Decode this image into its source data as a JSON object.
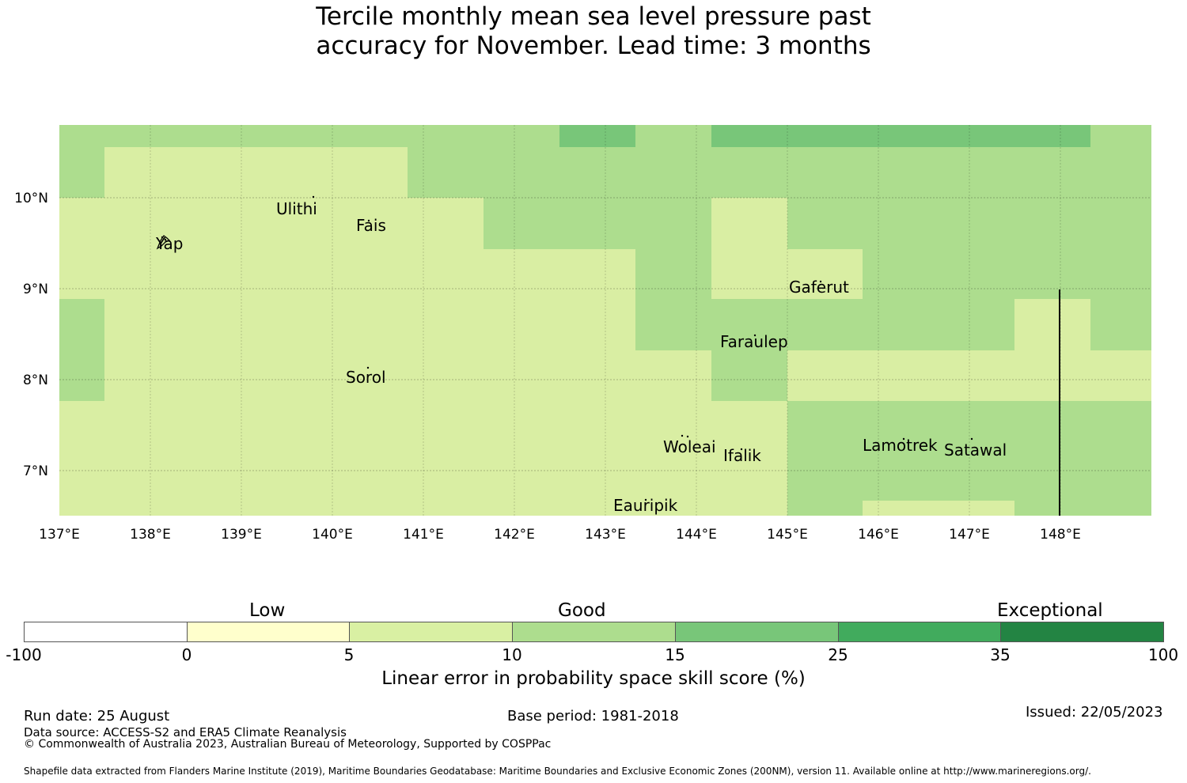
{
  "title_line1": "Tercile monthly mean sea level pressure past",
  "title_line2": "accuracy for November. Lead time: 3 months",
  "map": {
    "lon_labels": [
      "137°E",
      "138°E",
      "139°E",
      "140°E",
      "141°E",
      "142°E",
      "143°E",
      "144°E",
      "145°E",
      "146°E",
      "147°E",
      "148°E"
    ],
    "lat_labels": [
      "10°N",
      "9°N",
      "8°N",
      "7°N"
    ],
    "places": [
      {
        "name": "Yap"
      },
      {
        "name": "Ulithi"
      },
      {
        "name": "Fais"
      },
      {
        "name": "Gaferut"
      },
      {
        "name": "Faraulep"
      },
      {
        "name": "Sorol"
      },
      {
        "name": "Woleai"
      },
      {
        "name": "Ifalik"
      },
      {
        "name": "Lamotrek"
      },
      {
        "name": "Satawal"
      },
      {
        "name": "Eauripik"
      }
    ],
    "skill_colors": {
      "c5_10": "#d9eea3",
      "c10_15": "#addd8e",
      "c15_25": "#78c679"
    }
  },
  "colorbar": {
    "category_low": "Low",
    "category_good": "Good",
    "category_exceptional": "Exceptional",
    "ticks": [
      "-100",
      "0",
      "5",
      "10",
      "15",
      "25",
      "35",
      "100"
    ],
    "colors": [
      "#ffffff",
      "#ffffcc",
      "#d9f0a3",
      "#addd8e",
      "#78c679",
      "#41ab5d",
      "#238443"
    ],
    "label": "Linear error in probability space skill score (%)"
  },
  "footer": {
    "run_date": "Run date: 25 August",
    "base_period": "Base period: 1981-2018",
    "issued": "Issued: 22/05/2023",
    "data_source": "Data source: ACCESS-S2 and ERA5 Climate Reanalysis",
    "copyright": "© Commonwealth of Australia 2023, Australian Bureau of Meteorology, Supported by COSPPac",
    "shapefile": "Shapefile data extracted from Flanders Marine Institute (2019), Maritime Boundaries Geodatabase: Maritime Boundaries and Exclusive Economic Zones (200NM), version 11. Available online at http://www.marineregions.org/."
  }
}
